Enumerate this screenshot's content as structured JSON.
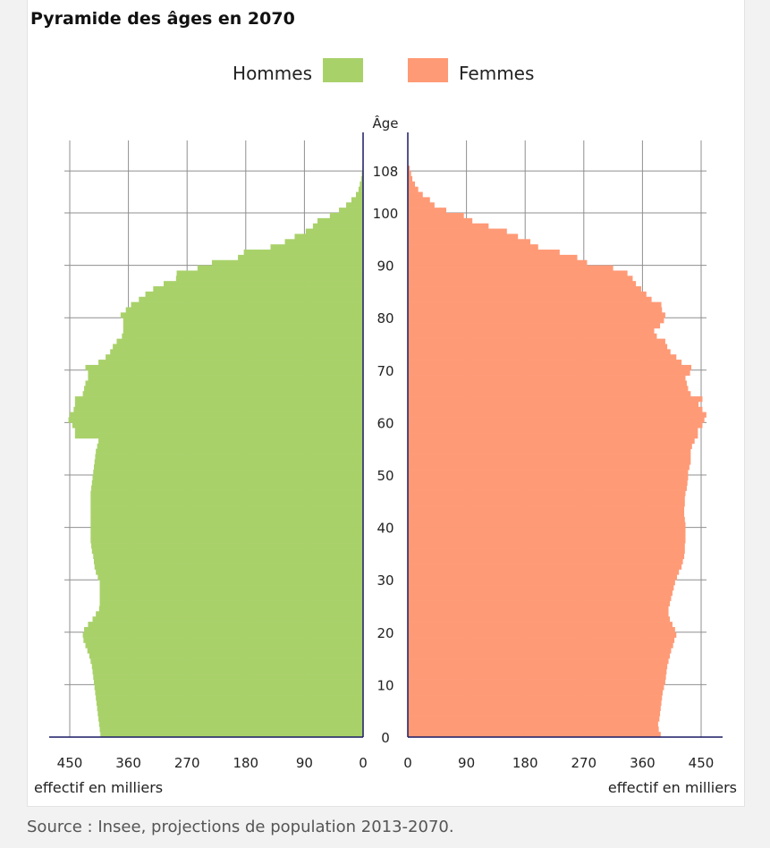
{
  "title": "Pyramide des âges en 2070",
  "source": "Source : Insee, projections de population 2013-2070.",
  "colors": {
    "men": "#a9d16a",
    "women": "#ff9a76",
    "axis": "#1a1a66",
    "grid": "#8f8f8f",
    "background": "#ffffff"
  },
  "chart_data": {
    "type": "bar",
    "orientation": "horizontal-pyramid",
    "legend": {
      "position": "top-center",
      "entries": [
        "Hommes",
        "Femmes"
      ]
    },
    "y_axis_label": "Âge",
    "y_ticks": [
      0,
      10,
      20,
      30,
      40,
      50,
      60,
      70,
      80,
      90,
      100,
      108
    ],
    "x_ticks": [
      450,
      360,
      270,
      180,
      90,
      0
    ],
    "x_unit_label": "effectif en milliers",
    "xlim": [
      0,
      450
    ],
    "ylim": [
      0,
      108
    ],
    "grid": true,
    "ages": [
      0,
      1,
      2,
      3,
      4,
      5,
      6,
      7,
      8,
      9,
      10,
      11,
      12,
      13,
      14,
      15,
      16,
      17,
      18,
      19,
      20,
      21,
      22,
      23,
      24,
      25,
      26,
      27,
      28,
      29,
      30,
      31,
      32,
      33,
      34,
      35,
      36,
      37,
      38,
      39,
      40,
      41,
      42,
      43,
      44,
      45,
      46,
      47,
      48,
      49,
      50,
      51,
      52,
      53,
      54,
      55,
      56,
      57,
      58,
      59,
      60,
      61,
      62,
      63,
      64,
      65,
      66,
      67,
      68,
      69,
      70,
      71,
      72,
      73,
      74,
      75,
      76,
      77,
      78,
      79,
      80,
      81,
      82,
      83,
      84,
      85,
      86,
      87,
      88,
      89,
      90,
      91,
      92,
      93,
      94,
      95,
      96,
      97,
      98,
      99,
      100,
      101,
      102,
      103,
      104,
      105,
      106,
      107,
      108
    ],
    "series": [
      {
        "name": "Hommes",
        "values": [
          403,
          404,
          405,
          406,
          407,
          408,
          409,
          410,
          411,
          412,
          413,
          414,
          415,
          416,
          418,
          420,
          423,
          426,
          429,
          430,
          428,
          422,
          415,
          410,
          405,
          404,
          404,
          404,
          404,
          404,
          407,
          410,
          412,
          413,
          414,
          416,
          417,
          418,
          418,
          418,
          418,
          418,
          418,
          418,
          418,
          418,
          418,
          417,
          416,
          415,
          414,
          413,
          412,
          411,
          410,
          408,
          406,
          442,
          442,
          446,
          452,
          450,
          444,
          442,
          442,
          430,
          428,
          426,
          422,
          422,
          426,
          406,
          395,
          388,
          384,
          378,
          370,
          368,
          368,
          368,
          372,
          364,
          356,
          344,
          334,
          322,
          306,
          287,
          286,
          254,
          232,
          192,
          183,
          142,
          120,
          105,
          88,
          77,
          70,
          51,
          37,
          26,
          18,
          11,
          7,
          5,
          3,
          2,
          1
        ]
      },
      {
        "name": "Femmes",
        "values": [
          388,
          385,
          384,
          386,
          387,
          388,
          389,
          390,
          391,
          393,
          395,
          396,
          397,
          398,
          400,
          402,
          404,
          407,
          409,
          412,
          410,
          406,
          402,
          400,
          400,
          402,
          404,
          406,
          408,
          410,
          413,
          416,
          420,
          422,
          424,
          425,
          425,
          426,
          426,
          426,
          426,
          425,
          424,
          424,
          425,
          425,
          426,
          428,
          429,
          430,
          430,
          432,
          434,
          434,
          434,
          436,
          440,
          445,
          445,
          452,
          455,
          458,
          452,
          446,
          452,
          434,
          430,
          428,
          426,
          433,
          435,
          420,
          412,
          403,
          398,
          395,
          382,
          378,
          387,
          393,
          395,
          390,
          389,
          374,
          366,
          358,
          350,
          345,
          337,
          315,
          275,
          260,
          233,
          200,
          188,
          169,
          152,
          124,
          99,
          86,
          59,
          41,
          34,
          23,
          16,
          11,
          7,
          5,
          3
        ]
      }
    ]
  }
}
